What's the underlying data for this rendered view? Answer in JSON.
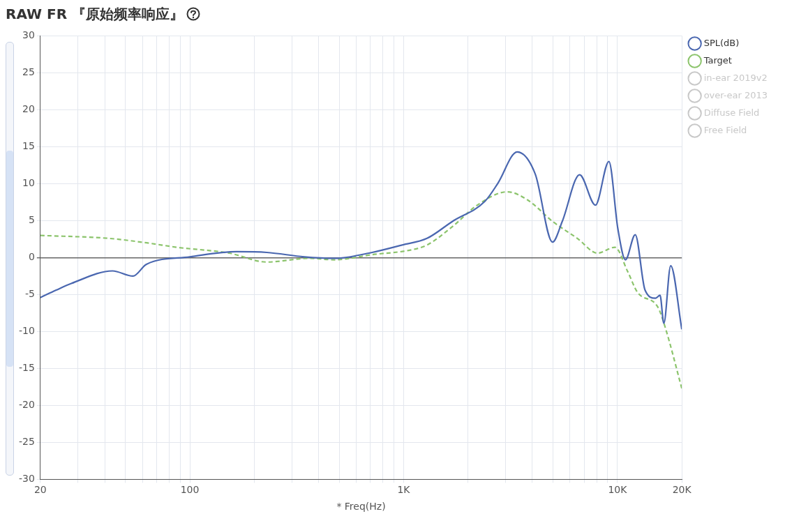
{
  "chart_data": {
    "type": "line",
    "title": "RAW FR 『原始频率响应』",
    "xlabel": "* Freq(Hz)",
    "log": "x",
    "xlim": [
      20,
      20000
    ],
    "ylim": [
      -30,
      30
    ],
    "xticks": [
      20,
      {
        "value": 30,
        "label": null
      },
      {
        "value": 40,
        "label": null
      },
      {
        "value": 50,
        "label": null
      },
      {
        "value": 60,
        "label": null
      },
      {
        "value": 70,
        "label": null
      },
      {
        "value": 80,
        "label": null
      },
      {
        "value": 90,
        "label": null
      },
      100,
      {
        "value": 200,
        "label": null
      },
      {
        "value": 300,
        "label": null
      },
      {
        "value": 400,
        "label": null
      },
      {
        "value": 500,
        "label": null
      },
      {
        "value": 600,
        "label": null
      },
      {
        "value": 700,
        "label": null
      },
      {
        "value": 800,
        "label": null
      },
      {
        "value": 900,
        "label": null
      },
      {
        "value": 1000,
        "label": "1K"
      },
      {
        "value": 2000,
        "label": null
      },
      {
        "value": 3000,
        "label": null
      },
      {
        "value": 4000,
        "label": null
      },
      {
        "value": 5000,
        "label": null
      },
      {
        "value": 6000,
        "label": null
      },
      {
        "value": 7000,
        "label": null
      },
      {
        "value": 8000,
        "label": null
      },
      {
        "value": 9000,
        "label": null
      },
      {
        "value": 10000,
        "label": "10K"
      },
      {
        "value": 20000,
        "label": "20K"
      }
    ],
    "yticks": [
      -30,
      -25,
      -20,
      -15,
      -10,
      -5,
      0,
      5,
      10,
      15,
      20,
      25,
      30
    ],
    "grid": true,
    "legend": "top right",
    "marker": "none",
    "series": [
      {
        "name": "SPL(dB)",
        "color": "#4a67b0",
        "line_style": "solid",
        "x": [
          20,
          23.7,
          27.9,
          43.5,
          54.2,
          62.7,
          100,
          166,
          229,
          343,
          474,
          712,
          984,
          1286,
          1692,
          2398,
          2752,
          3396,
          4126,
          4970,
          5520,
          6654,
          7888,
          9120,
          10045,
          10900,
          12110,
          13460,
          15080,
          15820,
          16480,
          17740,
          20000
        ],
        "values": [
          -5.4,
          -4.4,
          -3.5,
          -1.8,
          -2.5,
          -0.9,
          0.1,
          0.8,
          0.7,
          0.1,
          -0.1,
          0.7,
          1.7,
          2.6,
          4.9,
          7.6,
          10,
          14.3,
          11.3,
          2.1,
          4.9,
          11.2,
          7.1,
          13,
          3.9,
          -0.3,
          3.1,
          -4.4,
          -5.5,
          -5.1,
          -8.9,
          -1.1,
          -9.7
        ]
      },
      {
        "name": "Target",
        "color": "#8cc46c",
        "line_style": "dashed",
        "x": [
          20,
          41.8,
          62.7,
          86.6,
          153,
          229,
          363,
          474,
          712,
          1066,
          1286,
          1692,
          2212,
          3056,
          3800,
          4970,
          6490,
          8078,
          9730,
          11170,
          12410,
          15450,
          16750,
          20000
        ],
        "values": [
          3,
          2.6,
          2,
          1.4,
          0.6,
          -0.6,
          -0.1,
          -0.3,
          0.4,
          1,
          1.7,
          4.2,
          7.1,
          8.9,
          7.8,
          4.9,
          2.6,
          0.6,
          1.4,
          -1.9,
          -4.7,
          -6.7,
          -9.5,
          -17.7
        ]
      },
      {
        "name": "in-ear 2019v2",
        "color": "#c8c8c8"
      },
      {
        "name": "over-ear 2013",
        "color": "#c8c8c8"
      },
      {
        "name": "Diffuse Field",
        "color": "#c8c8c8"
      },
      {
        "name": "Free Field",
        "color": "#c8c8c8"
      }
    ]
  }
}
